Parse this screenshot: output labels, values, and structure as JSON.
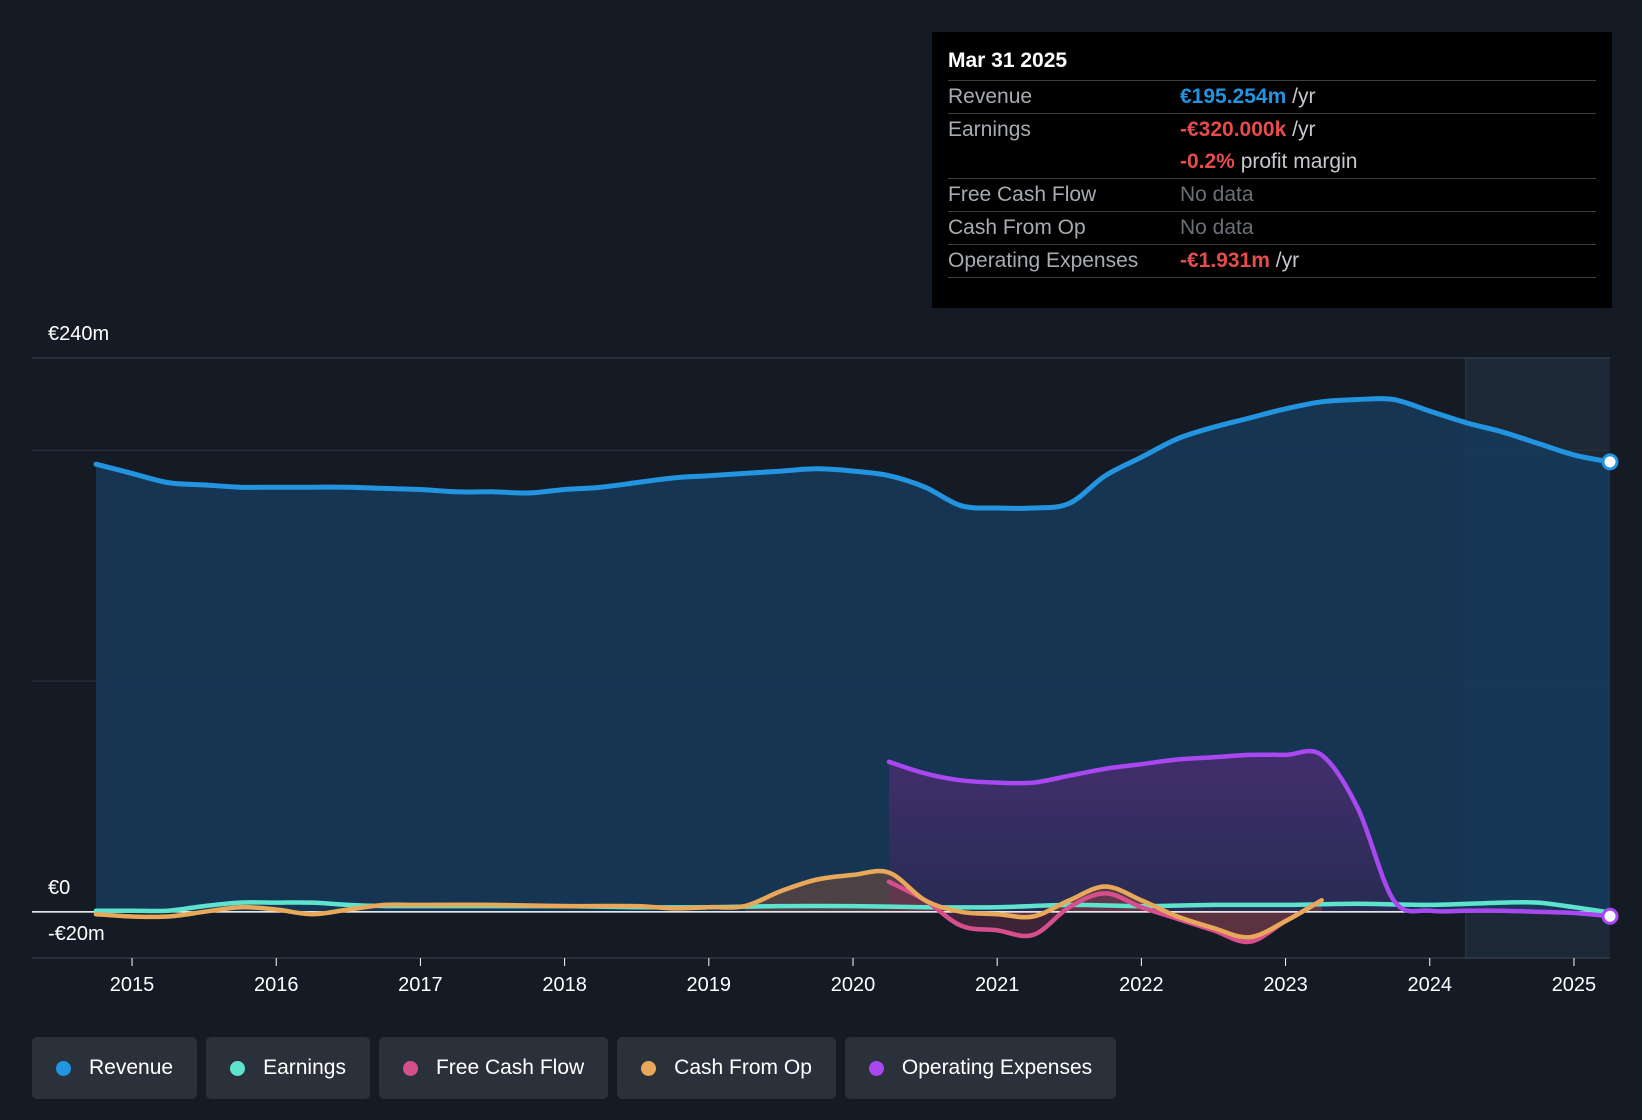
{
  "tooltip": {
    "date": "Mar 31 2025",
    "rows": [
      {
        "label": "Revenue",
        "value": "€195.254m",
        "unit": "/yr",
        "color": "#2394df"
      },
      {
        "label": "Earnings",
        "value": "-€320.000k",
        "unit": "/yr",
        "color": "#e64c4c"
      },
      {
        "label": "",
        "value": "-0.2%",
        "unit": "profit margin",
        "color": "#e64c4c"
      },
      {
        "label": "Free Cash Flow",
        "value": "No data",
        "unit": "",
        "color": "#6b7077"
      },
      {
        "label": "Cash From Op",
        "value": "No data",
        "unit": "",
        "color": "#6b7077"
      },
      {
        "label": "Operating Expenses",
        "value": "-€1.931m",
        "unit": "/yr",
        "color": "#e64c4c"
      }
    ]
  },
  "colors": {
    "background": "#151b24",
    "Revenue": "#2394df",
    "Earnings": "#5ee3cf",
    "Free Cash Flow": "#d64f8c",
    "Cash From Op": "#e8a85a",
    "Operating Expenses": "#a947f0"
  },
  "chart_data": {
    "type": "area",
    "title": "",
    "xlabel": "",
    "ylabel": "",
    "y_labels": [
      "€240m",
      "€0",
      "-€20m"
    ],
    "ylim": [
      -20,
      240
    ],
    "xlim": [
      2014.75,
      2025.25
    ],
    "x_ticks": [
      "2015",
      "2016",
      "2017",
      "2018",
      "2019",
      "2020",
      "2021",
      "2022",
      "2023",
      "2024",
      "2025"
    ],
    "grid": true,
    "legend": "bottom",
    "forecast_start": 2024.25,
    "series": [
      {
        "name": "Revenue",
        "x": [
          2014.75,
          2015.0,
          2015.25,
          2015.5,
          2015.75,
          2016.0,
          2016.25,
          2016.5,
          2016.75,
          2017.0,
          2017.25,
          2017.5,
          2017.75,
          2018.0,
          2018.25,
          2018.5,
          2018.75,
          2019.0,
          2019.25,
          2019.5,
          2019.75,
          2020.0,
          2020.25,
          2020.5,
          2020.75,
          2021.0,
          2021.25,
          2021.5,
          2021.75,
          2022.0,
          2022.25,
          2022.5,
          2022.75,
          2023.0,
          2023.25,
          2023.5,
          2023.75,
          2024.0,
          2024.25,
          2024.5,
          2024.75,
          2025.0,
          2025.25
        ],
        "values": [
          194,
          190,
          186,
          185,
          184,
          184,
          184,
          184,
          183.5,
          183,
          182,
          182,
          181.5,
          183,
          184,
          186,
          188,
          189,
          190,
          191,
          192,
          191,
          189,
          184,
          176,
          175,
          175,
          177,
          189,
          197,
          205,
          210,
          214,
          218,
          221,
          222,
          222,
          217,
          212,
          208,
          203,
          198,
          195
        ]
      },
      {
        "name": "Earnings",
        "x": [
          2014.75,
          2015.0,
          2015.25,
          2015.5,
          2015.75,
          2016.0,
          2016.25,
          2016.5,
          2016.75,
          2017.0,
          2017.5,
          2018.0,
          2018.5,
          2019.0,
          2019.5,
          2020.0,
          2020.5,
          2021.0,
          2021.5,
          2022.0,
          2022.5,
          2023.0,
          2023.5,
          2024.0,
          2024.5,
          2024.75,
          2025.0,
          2025.25
        ],
        "values": [
          0.5,
          0.5,
          0.5,
          2.5,
          4,
          4,
          4,
          3,
          2.5,
          2.5,
          2.5,
          2.5,
          2,
          2,
          2.5,
          2.5,
          2,
          2,
          3,
          2.5,
          3,
          3,
          3.5,
          3,
          4,
          4,
          2,
          -0.3
        ]
      },
      {
        "name": "Free Cash Flow",
        "x": [
          2020.25,
          2020.5,
          2020.75,
          2021.0,
          2021.25,
          2021.5,
          2021.75,
          2022.0,
          2022.25,
          2022.5,
          2022.75,
          2023.0,
          2023.25
        ],
        "values": [
          13,
          5,
          -6,
          -8,
          -10,
          2,
          8,
          2,
          -3,
          -8,
          -13,
          -4,
          5
        ]
      },
      {
        "name": "Cash From Op",
        "x": [
          2014.75,
          2015.0,
          2015.25,
          2015.5,
          2015.75,
          2016.0,
          2016.25,
          2016.5,
          2016.75,
          2017.0,
          2017.5,
          2018.0,
          2018.5,
          2018.75,
          2019.0,
          2019.25,
          2019.5,
          2019.75,
          2020.0,
          2020.25,
          2020.5,
          2020.75,
          2021.0,
          2021.25,
          2021.5,
          2021.75,
          2022.0,
          2022.25,
          2022.5,
          2022.75,
          2023.0,
          2023.25
        ],
        "values": [
          -1,
          -2,
          -2,
          0,
          2,
          1,
          -1,
          1,
          3,
          3,
          3,
          2.5,
          2.5,
          1.5,
          2,
          2.5,
          9,
          14,
          16,
          17,
          5,
          0,
          -1,
          -2,
          5,
          11,
          5,
          -2,
          -7,
          -11,
          -4,
          5
        ]
      },
      {
        "name": "Operating Expenses",
        "x": [
          2020.25,
          2020.5,
          2020.75,
          2021.0,
          2021.25,
          2021.5,
          2021.75,
          2022.0,
          2022.25,
          2022.5,
          2022.75,
          2023.0,
          2023.25,
          2023.5,
          2023.75,
          2024.0,
          2024.25,
          2024.5,
          2024.75,
          2025.0,
          2025.25
        ],
        "values": [
          65,
          60,
          57,
          56,
          56,
          59,
          62,
          64,
          66,
          67,
          68,
          68,
          68,
          45,
          5,
          0.5,
          0.5,
          0.5,
          0,
          -0.5,
          -1.9
        ]
      }
    ]
  }
}
